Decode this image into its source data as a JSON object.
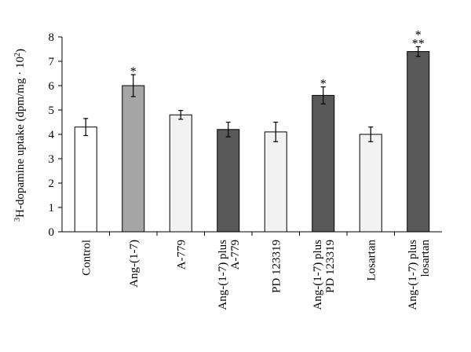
{
  "chart_data": {
    "type": "bar",
    "ylabel": {
      "sup_pre": "3",
      "main": "H-dopamine uptake (dpm/mg · 10",
      "sup_post": "2",
      "close": ")"
    },
    "ylim": [
      0,
      8
    ],
    "yticks": [
      "0",
      "1",
      "2",
      "3",
      "4",
      "5",
      "6",
      "7",
      "8"
    ],
    "grid": false,
    "legend": "none",
    "categories": [
      [
        "Control"
      ],
      [
        "Ang-(1-7)"
      ],
      [
        "A-779"
      ],
      [
        "Ang-(1-7) plus",
        "A-779"
      ],
      [
        "PD 123319"
      ],
      [
        "Ang-(1-7) plus",
        "PD 123319"
      ],
      [
        "Losartan"
      ],
      [
        "Ang-(1-7) plus",
        "losartan"
      ]
    ],
    "values": [
      4.3,
      6.0,
      4.8,
      4.2,
      4.1,
      5.6,
      4.0,
      7.4
    ],
    "errors": [
      0.35,
      0.45,
      0.18,
      0.3,
      0.4,
      0.35,
      0.3,
      0.2
    ],
    "significance": [
      [],
      [
        "*"
      ],
      [],
      [],
      [],
      [
        "*"
      ],
      [],
      [
        "*",
        "**"
      ]
    ],
    "colors": {
      "white": "#ffffff",
      "light_gray": "#a6a6a6",
      "very_light": "#f2f2f2",
      "dark_gray": "#595959",
      "stroke": "#000000"
    },
    "bar_fill_keys": [
      "white",
      "light_gray",
      "very_light",
      "dark_gray",
      "very_light",
      "dark_gray",
      "very_light",
      "dark_gray"
    ]
  }
}
